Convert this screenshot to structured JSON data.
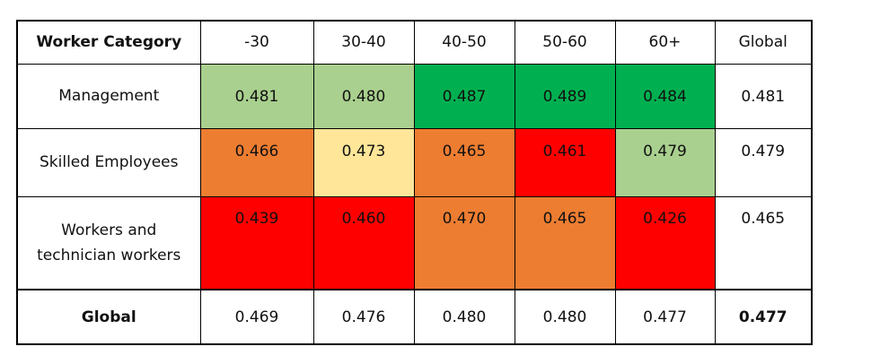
{
  "table": {
    "header": [
      "Worker Category",
      "-30",
      "30-40",
      "40-50",
      "50-60",
      "60+",
      "Global"
    ],
    "rows": [
      {
        "label": "Management",
        "values": [
          "0.481",
          "0.480",
          "0.487",
          "0.489",
          "0.484",
          "0.481"
        ],
        "colors": [
          "#a9d08e",
          "#a9d08e",
          "#00b050",
          "#00b050",
          "#00b050"
        ]
      },
      {
        "label": "Skilled Employees",
        "values": [
          "0.466",
          "0.473",
          "0.465",
          "0.461",
          "0.479",
          "0.479"
        ],
        "colors": [
          "#ed7d31",
          "#ffe699",
          "#ed7d31",
          "#ff0000",
          "#a9d08e"
        ]
      },
      {
        "label": "Workers and technician workers",
        "values": [
          "0.439",
          "0.460",
          "0.470",
          "0.465",
          "0.426",
          "0.465"
        ],
        "colors": [
          "#ff0000",
          "#ff0000",
          "#ed7d31",
          "#ed7d31",
          "#ff0000"
        ]
      }
    ],
    "total": {
      "label": "Global",
      "values": [
        "0.469",
        "0.476",
        "0.480",
        "0.480",
        "0.477",
        "0.477"
      ]
    }
  }
}
